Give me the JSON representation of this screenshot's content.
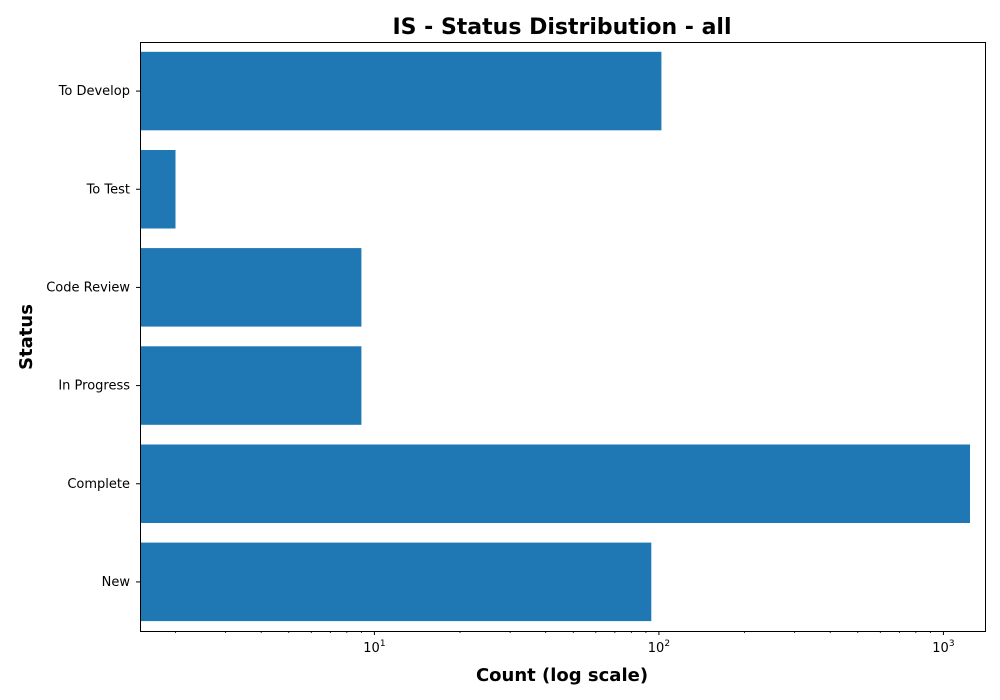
{
  "chart_data": {
    "type": "bar",
    "orientation": "horizontal",
    "title": "IS - Status Distribution - all",
    "xlabel": "Count (log scale)",
    "ylabel": "Status",
    "x_scale": "log",
    "xlim": [
      1.5,
      1400
    ],
    "x_ticks": [
      {
        "base": "10",
        "exp": "1",
        "value": 10
      },
      {
        "base": "10",
        "exp": "2",
        "value": 100
      },
      {
        "base": "10",
        "exp": "3",
        "value": 1000
      }
    ],
    "categories": [
      "New",
      "Complete",
      "In Progress",
      "Code Review",
      "To Test",
      "To Develop"
    ],
    "values": [
      94,
      1240,
      9,
      9,
      2,
      102
    ],
    "bar_color": "#1f77b4",
    "grid": false,
    "legend": false
  }
}
